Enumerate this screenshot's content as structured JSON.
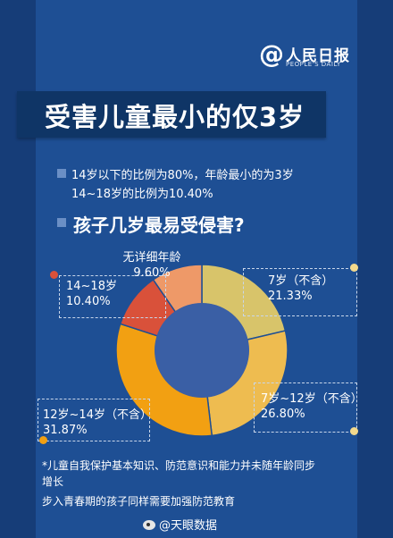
{
  "brand": {
    "at": "@",
    "name": "人民日报",
    "sub": "PEOPLE'S DAILY"
  },
  "title": "受害儿童最小的仅3岁",
  "summary": {
    "line1": "14岁以下的比例为80%，年龄最小的为3岁",
    "line2": "14~18岁的比例为10.40%"
  },
  "subtitle": "孩子几岁最易受侵害?",
  "chart_data": {
    "type": "pie",
    "donut": true,
    "slices": [
      {
        "label": "7岁（不含）",
        "value": 21.33,
        "display": "21.33%",
        "color": "#d8c46a"
      },
      {
        "label": "7岁~12岁（不含）",
        "value": 26.8,
        "display": "26.80%",
        "color": "#eebc50"
      },
      {
        "label": "12岁~14岁（不含）",
        "value": 31.87,
        "display": "31.87%",
        "color": "#f2a012"
      },
      {
        "label": "14~18岁",
        "value": 10.4,
        "display": "10.40%",
        "color": "#d9513a"
      },
      {
        "label": "无详细年龄",
        "value": 9.6,
        "display": "9.60%",
        "color": "#ee9968"
      }
    ],
    "center_color": "#3a5fa5"
  },
  "notes": {
    "line1": "*儿童自我保护基本知识、防范意识和能力并未随年龄同步",
    "line2": "增长",
    "line3": "步入青春期的孩子同样需要加强防范教育"
  },
  "watermark": "@天眼数据"
}
